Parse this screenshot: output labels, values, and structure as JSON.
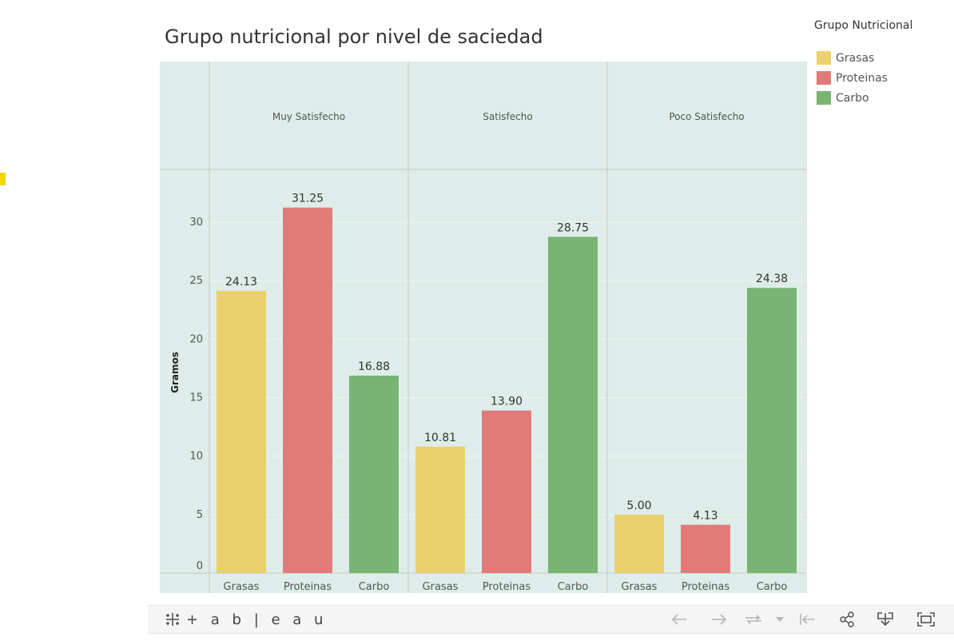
{
  "chart_data": {
    "type": "bar",
    "title": "Grupo nutricional por nivel de saciedad",
    "ylabel": "Gramos",
    "ylim": [
      0,
      34
    ],
    "yticks": [
      0,
      5,
      10,
      15,
      20,
      25,
      30
    ],
    "grid": true,
    "legend_position": "top-right",
    "legend_title": "Grupo Nutricional",
    "panels": [
      {
        "name": "Muy Satisfecho",
        "categories": [
          "Grasas",
          "Proteinas",
          "Carbo"
        ],
        "values": [
          24.13,
          31.25,
          16.88
        ],
        "labels": [
          "24.13",
          "31.25",
          "16.88"
        ]
      },
      {
        "name": "Satisfecho",
        "categories": [
          "Grasas",
          "Proteinas",
          "Carbo"
        ],
        "values": [
          10.81,
          13.9,
          28.75
        ],
        "labels": [
          "10.81",
          "13.90",
          "28.75"
        ]
      },
      {
        "name": "Poco Satisfecho",
        "categories": [
          "Grasas",
          "Proteinas",
          "Carbo"
        ],
        "values": [
          5.0,
          4.13,
          24.38
        ],
        "labels": [
          "5.00",
          "4.13",
          "24.38"
        ]
      }
    ],
    "series": [
      {
        "name": "Grasas",
        "color": "#e9d26d"
      },
      {
        "name": "Proteinas",
        "color": "#e17b7a"
      },
      {
        "name": "Carbo",
        "color": "#78b472"
      }
    ]
  },
  "toolbar": {
    "logo_text": "+ a b | e a u",
    "buttons": [
      "undo-icon",
      "redo-icon",
      "revert-icon",
      "dropdown-icon",
      "reset-icon",
      "share-icon",
      "download-icon",
      "fullscreen-icon"
    ]
  }
}
